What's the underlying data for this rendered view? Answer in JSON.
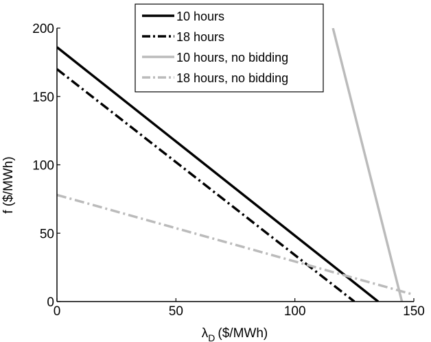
{
  "chart_data": {
    "type": "line",
    "title": "",
    "xlabel": "λ",
    "xlabel_sub": "D",
    "xlabel_unit": "($/MWh)",
    "ylabel": "f ($/MWh)",
    "xlim": [
      0,
      150
    ],
    "ylim": [
      0,
      200
    ],
    "xticks": [
      0,
      50,
      100,
      150
    ],
    "yticks": [
      0,
      50,
      100,
      150,
      200
    ],
    "grid": false,
    "legend_position": "top-center",
    "series": [
      {
        "name": "10 hours",
        "color": "#000000",
        "dash": "solid",
        "x": [
          0,
          135
        ],
        "y": [
          186,
          0
        ]
      },
      {
        "name": "18 hours",
        "color": "#000000",
        "dash": "dashdot",
        "x": [
          0,
          125
        ],
        "y": [
          170,
          0
        ]
      },
      {
        "name": "10 hours, no bidding",
        "color": "#bbbbbb",
        "dash": "solid",
        "x": [
          116,
          145
        ],
        "y": [
          200,
          0
        ]
      },
      {
        "name": "18 hours, no bidding",
        "color": "#bbbbbb",
        "dash": "dashdot",
        "x": [
          0,
          150
        ],
        "y": [
          78,
          5
        ]
      }
    ]
  }
}
